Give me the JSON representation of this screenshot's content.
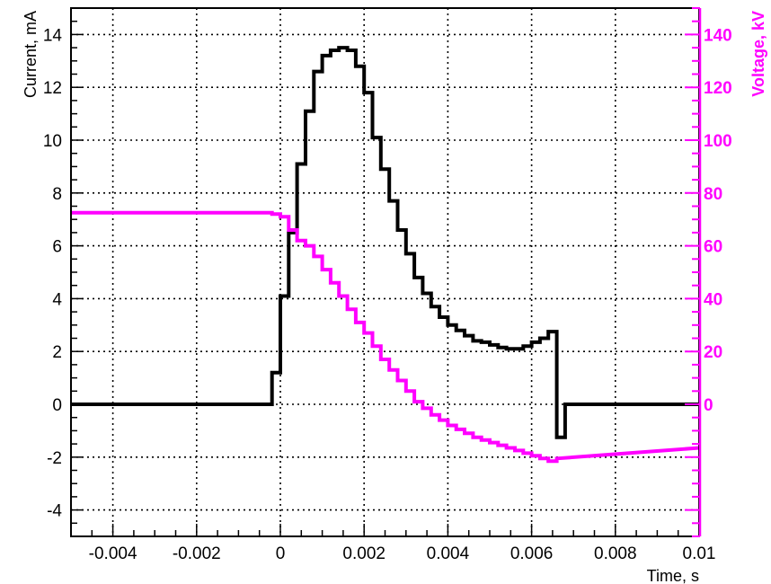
{
  "chart_data": {
    "type": "line",
    "title": "",
    "xlabel": "Time, s",
    "ylabel": "Current, mA",
    "y2label": "Voltage, kV",
    "xlim": [
      -0.005,
      0.01
    ],
    "ylim": [
      -5,
      15
    ],
    "y2lim": [
      -50,
      150
    ],
    "xticks": [
      -0.004,
      -0.002,
      0,
      0.002,
      0.004,
      0.006,
      0.008,
      0.01
    ],
    "xtick_labels": [
      "-0.004",
      "-0.002",
      "0",
      "0.002",
      "0.004",
      "0.006",
      "0.008",
      "0.01"
    ],
    "yticks": [
      -4,
      -2,
      0,
      2,
      4,
      6,
      8,
      10,
      12,
      14
    ],
    "ytick_labels": [
      "-4",
      "-2",
      "0",
      "2",
      "4",
      "6",
      "8",
      "10",
      "12",
      "14"
    ],
    "y2ticks": [
      0,
      20,
      40,
      60,
      80,
      100,
      120,
      140
    ],
    "y2tick_labels": [
      "0",
      "20",
      "40",
      "60",
      "80",
      "100",
      "120",
      "140"
    ],
    "grid": true,
    "colors": {
      "current": "#000000",
      "voltage": "#ff00ff"
    },
    "series": [
      {
        "axis": "left",
        "step": "post",
        "x": [
          -0.005,
          -0.0002,
          0.0,
          0.0002,
          0.0004,
          0.0006,
          0.0008,
          0.001,
          0.0012,
          0.0014,
          0.0016,
          0.0018,
          0.002,
          0.0022,
          0.0024,
          0.0026,
          0.0028,
          0.003,
          0.0032,
          0.0034,
          0.0036,
          0.0038,
          0.004,
          0.0042,
          0.0044,
          0.0046,
          0.0048,
          0.005,
          0.0052,
          0.0054,
          0.0056,
          0.0058,
          0.006,
          0.0062,
          0.0064,
          0.0066,
          0.0068,
          0.01
        ],
        "values": [
          0.0,
          1.2,
          4.1,
          6.5,
          9.1,
          11.1,
          12.6,
          13.2,
          13.4,
          13.5,
          13.4,
          12.8,
          11.8,
          10.1,
          8.9,
          7.7,
          6.6,
          5.7,
          4.8,
          4.2,
          3.7,
          3.3,
          3.0,
          2.8,
          2.6,
          2.4,
          2.35,
          2.25,
          2.15,
          2.1,
          2.1,
          2.2,
          2.35,
          2.5,
          2.75,
          -1.25,
          0.0,
          0.0
        ]
      },
      {
        "axis": "right",
        "step": "post",
        "x": [
          -0.005,
          -0.0002,
          0.0,
          0.0002,
          0.0004,
          0.0006,
          0.0008,
          0.001,
          0.0012,
          0.0014,
          0.0016,
          0.0018,
          0.002,
          0.0022,
          0.0024,
          0.0026,
          0.0028,
          0.003,
          0.0032,
          0.0034,
          0.0036,
          0.0038,
          0.004,
          0.0042,
          0.0044,
          0.0046,
          0.0048,
          0.005,
          0.0052,
          0.0054,
          0.0056,
          0.0058,
          0.006,
          0.0062,
          0.0064,
          0.0066,
          0.01
        ],
        "values": [
          72.5,
          72.0,
          71.0,
          66.0,
          62.0,
          60.0,
          56.0,
          51.0,
          46.0,
          41.0,
          36.0,
          31.0,
          27.0,
          22.0,
          17.0,
          13.0,
          9.0,
          5.0,
          1.0,
          -1.5,
          -4.0,
          -6.0,
          -8.0,
          -9.5,
          -11.0,
          -12.5,
          -13.5,
          -14.5,
          -15.5,
          -16.5,
          -17.5,
          -18.5,
          -19.5,
          -20.5,
          -21.5,
          -20.5,
          -16.5
        ]
      }
    ]
  }
}
